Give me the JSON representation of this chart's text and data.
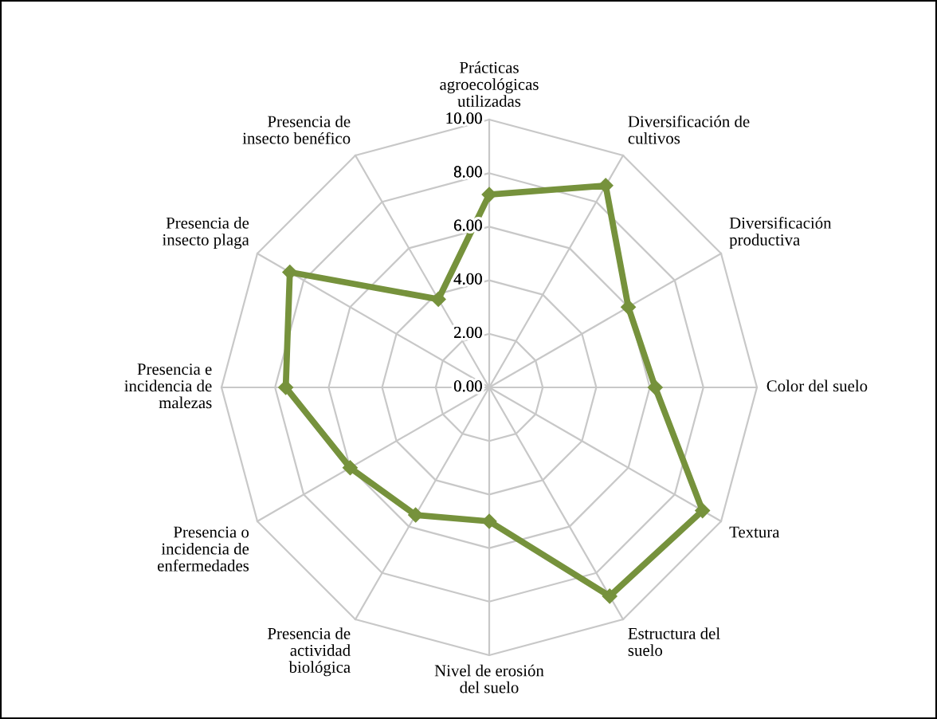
{
  "chart_data": {
    "type": "radar",
    "categories": [
      "Prácticas\nagroecológicas\nutilizadas",
      "Diversificación de\ncultivos",
      "Diversificación\nproductiva",
      "Color del suelo",
      "Textura",
      "Estructura del\nsuelo",
      "Nivel de erosión\ndel suelo",
      "Presencia de\nactividad\nbiológica",
      "Presencia o\nincidencia de\nenfermedades",
      "Presencia e\nincidencia de\nmalezas",
      "Presencia de\ninsecto plaga",
      "Presencia de\ninsecto benéfico"
    ],
    "series": [
      {
        "color": "#76923c",
        "values": [
          7.2,
          8.7,
          6.0,
          6.2,
          9.2,
          9.0,
          5.0,
          5.5,
          6.0,
          7.6,
          8.6,
          3.8
        ]
      }
    ],
    "ylim": [
      0,
      10
    ],
    "yticks": [
      {
        "value": 0,
        "label": "0.00"
      },
      {
        "value": 2,
        "label": "2.00"
      },
      {
        "value": 4,
        "label": "4.00"
      },
      {
        "value": 6,
        "label": "6.00"
      },
      {
        "value": 8,
        "label": "8.00"
      },
      {
        "value": 10,
        "label": "10.00"
      }
    ],
    "marker": "diamond",
    "line_style": "solid",
    "grid": true
  }
}
